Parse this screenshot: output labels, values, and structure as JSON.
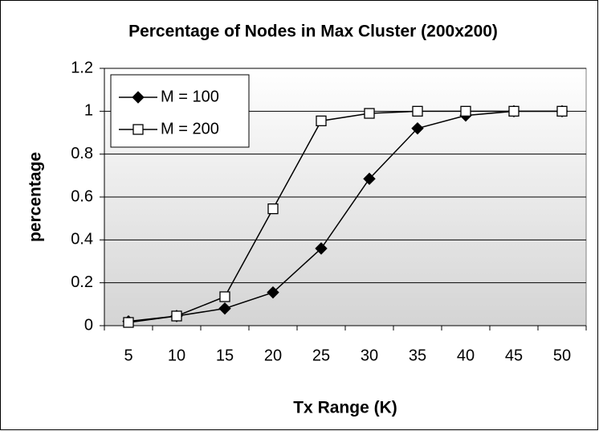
{
  "chart_data": {
    "type": "line",
    "title": "Percentage of Nodes in Max Cluster (200x200)",
    "x_label": "Tx Range (K)",
    "y_label": "percentage",
    "categories": [
      "5",
      "10",
      "15",
      "20",
      "25",
      "30",
      "35",
      "40",
      "45",
      "50"
    ],
    "series": [
      {
        "name": "M = 100",
        "color": "#000000",
        "marker": "diamond",
        "values": [
          0.02,
          0.045,
          0.08,
          0.155,
          0.36,
          0.685,
          0.92,
          0.98,
          1.0,
          1.0
        ]
      },
      {
        "name": "M = 200",
        "color": "#000000",
        "marker": "square",
        "values": [
          0.015,
          0.045,
          0.135,
          0.545,
          0.955,
          0.99,
          1.0,
          1.0,
          1.0,
          1.0
        ]
      }
    ],
    "ylim": [
      0,
      1.2
    ],
    "yticks": [
      0,
      0.2,
      0.4,
      0.6,
      0.8,
      1,
      1.2
    ],
    "grid": true,
    "legend": "top-left"
  }
}
